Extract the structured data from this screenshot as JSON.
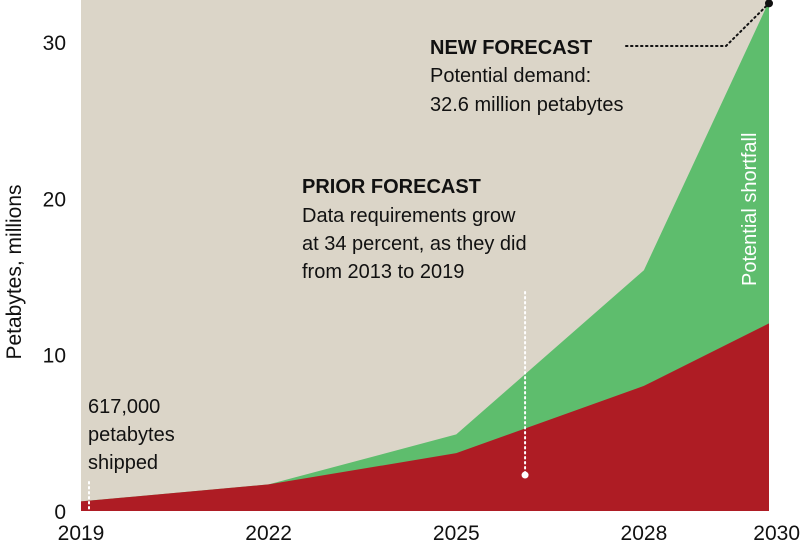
{
  "chart_data": {
    "type": "area",
    "title": "",
    "xlabel": "",
    "ylabel": "Petabytes, millions",
    "xlim": [
      2019,
      2030
    ],
    "ylim": [
      0,
      32.6
    ],
    "grid": false,
    "x_ticks": [
      2019,
      2022,
      2025,
      2028,
      2030
    ],
    "x_tick_labels": [
      "2019",
      "2022",
      "2025",
      "2028",
      "2030"
    ],
    "y_ticks": [
      0,
      10,
      20,
      30
    ],
    "y_tick_labels": [
      "0",
      "10",
      "20",
      "30"
    ],
    "x": [
      2019,
      2022,
      2025,
      2028,
      2030
    ],
    "series": [
      {
        "name": "Prior forecast",
        "values": [
          0.617,
          1.7,
          3.7,
          8.0,
          12.0
        ],
        "color": "#ae1c24"
      },
      {
        "name": "New forecast (potential demand)",
        "values": [
          0.617,
          1.7,
          4.9,
          15.4,
          32.6
        ],
        "color": "#5ebd6d"
      }
    ],
    "background_color": "#dbd5c8",
    "annotations": {
      "new_forecast": {
        "title": "NEW FORECAST",
        "lines": [
          "Potential demand:",
          "32.6 million petabytes"
        ],
        "point": {
          "x": 2030,
          "y": 32.6
        }
      },
      "prior_forecast": {
        "title": "PRIOR FORECAST",
        "lines": [
          "Data requirements grow",
          "at 34 percent, as they did",
          "from 2013 to 2019"
        ],
        "point": {
          "x": 2026.1,
          "y": 2.3
        }
      },
      "shipped": {
        "lines": [
          "617,000",
          "petabytes",
          "shipped"
        ],
        "point": {
          "x": 2019,
          "y": 0.617
        }
      },
      "shortfall_label": "Potential shortfall"
    }
  }
}
